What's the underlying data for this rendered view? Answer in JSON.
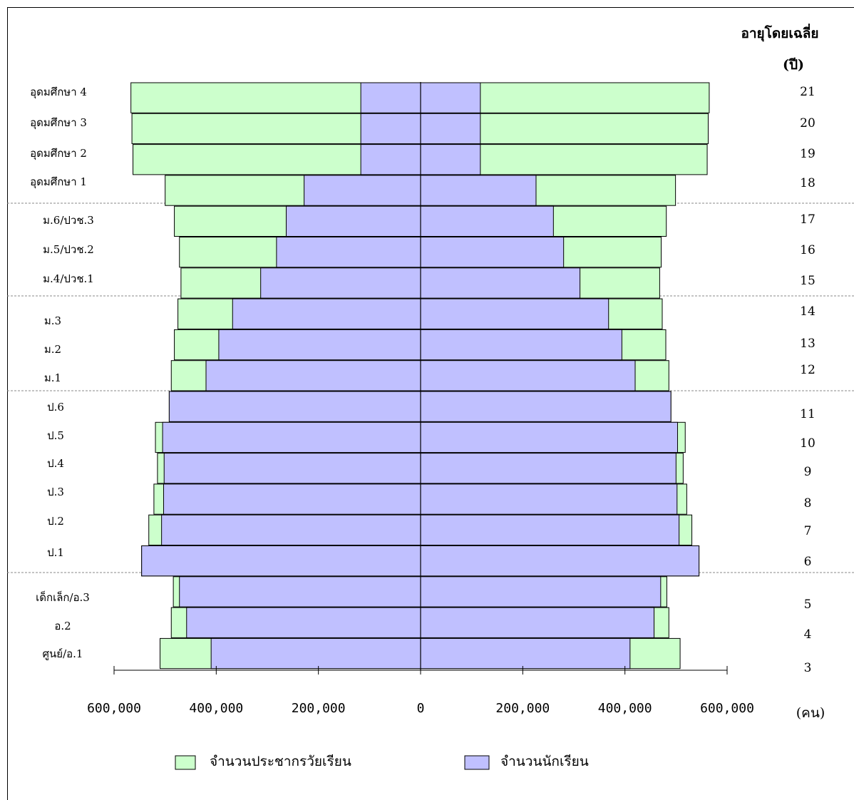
{
  "chart_data": {
    "type": "bar",
    "orientation": "horizontal-butterfly",
    "age_header_line1": "อายุโดยเฉลี่ย",
    "age_header_line2": "(ปี)",
    "unit_label": "(คน)",
    "x_tick_labels": [
      "600,000",
      "400,000",
      "200,000",
      "0",
      "200,000",
      "400,000",
      "600,000"
    ],
    "xlim": [
      -600000,
      600000
    ],
    "grade_levels": [
      "อุดมศึกษา 4",
      "อุดมศึกษา 3",
      "อุดมศึกษา 2",
      "อุดมศึกษา 1",
      "ม.6/ปวช.3",
      "ม.5/ปวช.2",
      "ม.4/ปวช.1",
      "ม.3",
      "ม.2",
      "ม.1",
      "ป.6",
      "ป.5",
      "ป.4",
      "ป.3",
      "ป.2",
      "ป.1",
      "เด็กเล็ก/อ.3",
      "อ.2",
      "ศูนย์/อ.1"
    ],
    "ages": [
      "21",
      "20",
      "19",
      "18",
      "17",
      "16",
      "15",
      "14",
      "13",
      "12",
      "11",
      "10",
      "9",
      "8",
      "7",
      "6",
      "5",
      "4",
      "3"
    ],
    "series": [
      {
        "name": "จำนวนประชากรวัยเรียน",
        "color": "#ccffcc",
        "left": [
          567000,
          565000,
          563000,
          500000,
          482000,
          472000,
          469000,
          475000,
          482000,
          488000,
          492000,
          519000,
          515000,
          522000,
          532000,
          546000,
          484000,
          488000,
          510000
        ],
        "right": [
          565000,
          563000,
          561000,
          499000,
          481000,
          471000,
          468000,
          473000,
          480000,
          486000,
          490000,
          518000,
          514000,
          521000,
          531000,
          545000,
          482000,
          486000,
          508000
        ]
      },
      {
        "name": "จำนวนนักเรียน",
        "color": "#c0c0ff",
        "left": [
          117000,
          117000,
          117000,
          228000,
          263000,
          282000,
          313000,
          368000,
          395000,
          420000,
          492000,
          505000,
          502000,
          503000,
          507000,
          546000,
          472000,
          458000,
          410000
        ],
        "right": [
          117000,
          117000,
          117000,
          226000,
          260000,
          280000,
          312000,
          368000,
          394000,
          420000,
          490000,
          503000,
          500000,
          502000,
          506000,
          545000,
          470000,
          457000,
          410000
        ]
      }
    ],
    "legend_position": "bottom-center"
  }
}
